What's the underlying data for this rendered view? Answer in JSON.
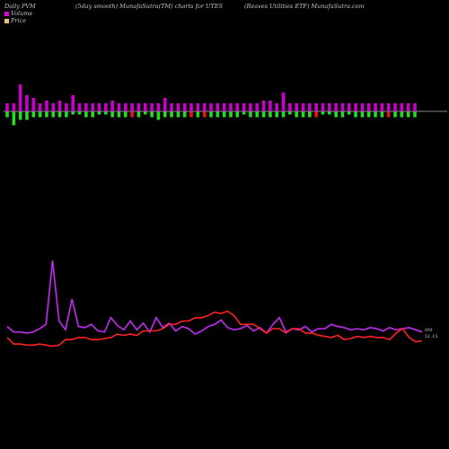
{
  "header": {
    "left": "Daily PVM",
    "middle": "(5day smooth) MunafaSutra(TM) charts for UTES",
    "right": "(Reaves Utilities ETF) MunafaSutra.com"
  },
  "legend": {
    "volume": {
      "label": "Volume",
      "color": "#e000e0"
    },
    "price": {
      "label": "Price",
      "color": "#f0c080"
    }
  },
  "colors": {
    "up_bar": "#cc00cc",
    "down_bar_green": "#22dd22",
    "down_bar_red": "#ee1111",
    "zero_line": "#b0b0b0",
    "volume_line": "#aa44ee",
    "volume_line_glow": "#e000e0",
    "price_line": "#ff2222"
  },
  "chart_data": {
    "type": "bar+line",
    "title": "(5day smooth) MunafaSutra(TM) charts for UTES",
    "end_labels": {
      "volume": "0M",
      "price": "51.15"
    },
    "pvm_bars": {
      "up": [
        3,
        3,
        10,
        6,
        5,
        3,
        4,
        3,
        4,
        3,
        6,
        3,
        3,
        3,
        3,
        3,
        4,
        3,
        3,
        3,
        3,
        3,
        3,
        3,
        5,
        3,
        3,
        3,
        3,
        3,
        3,
        3,
        3,
        3,
        3,
        3,
        3,
        3,
        3,
        4,
        4,
        3,
        7,
        3,
        3,
        3,
        3,
        3,
        3,
        3,
        3,
        3,
        3,
        3,
        3,
        3,
        3,
        3,
        3,
        3,
        3,
        3,
        3
      ],
      "down": [
        -2,
        -5,
        -3,
        -3,
        -2,
        -2,
        -2,
        -2,
        -2,
        -2,
        -1,
        -1,
        -2,
        -2,
        -1,
        -1,
        -2,
        -2,
        -2,
        -2,
        -2,
        -1,
        -2,
        -3,
        -2,
        -2,
        -2,
        -2,
        -2,
        -2,
        -2,
        -2,
        -2,
        -2,
        -2,
        -2,
        -1,
        -2,
        -2,
        -2,
        -2,
        -2,
        -2,
        -1,
        -2,
        -2,
        -2,
        -2,
        -1,
        -1,
        -2,
        -2,
        -1,
        -2,
        -2,
        -2,
        -2,
        -2,
        -2,
        -2,
        -2,
        -2,
        -2
      ],
      "down_colors": [
        "g",
        "g",
        "g",
        "g",
        "g",
        "g",
        "g",
        "g",
        "g",
        "g",
        "g",
        "g",
        "g",
        "g",
        "g",
        "g",
        "g",
        "g",
        "g",
        "r",
        "g",
        "g",
        "g",
        "g",
        "g",
        "g",
        "g",
        "g",
        "r",
        "g",
        "r",
        "g",
        "g",
        "g",
        "g",
        "g",
        "g",
        "g",
        "g",
        "g",
        "g",
        "g",
        "g",
        "g",
        "g",
        "g",
        "g",
        "r",
        "g",
        "g",
        "g",
        "g",
        "g",
        "g",
        "g",
        "g",
        "g",
        "g",
        "r",
        "g",
        "g",
        "g",
        "g"
      ]
    },
    "volume": [
      20,
      15,
      15,
      14,
      15,
      18,
      22,
      80,
      25,
      17,
      45,
      20,
      19,
      22,
      16,
      15,
      28,
      21,
      17,
      25,
      17,
      23,
      15,
      28,
      19,
      23,
      16,
      20,
      18,
      13,
      16,
      20,
      22,
      26,
      19,
      17,
      18,
      21,
      16,
      19,
      14,
      22,
      28,
      15,
      18,
      17,
      20,
      15,
      18,
      18,
      22,
      20,
      19,
      17,
      18,
      17,
      19,
      18,
      16,
      19,
      17,
      18,
      19,
      17,
      15
    ],
    "price": [
      10,
      4,
      4,
      3,
      3,
      4,
      3,
      2,
      3,
      8,
      8,
      10,
      10,
      8,
      8,
      9,
      10,
      13,
      12,
      13,
      12,
      16,
      16,
      16,
      18,
      22,
      22,
      25,
      25,
      28,
      28,
      30,
      33,
      32,
      34,
      30,
      22,
      22,
      22,
      18,
      14,
      18,
      18,
      14,
      18,
      18,
      14,
      14,
      12,
      11,
      10,
      12,
      8,
      9,
      11,
      10,
      11,
      10,
      10,
      8,
      14,
      18,
      10,
      6,
      7
    ],
    "ylim": [
      0,
      100
    ]
  }
}
